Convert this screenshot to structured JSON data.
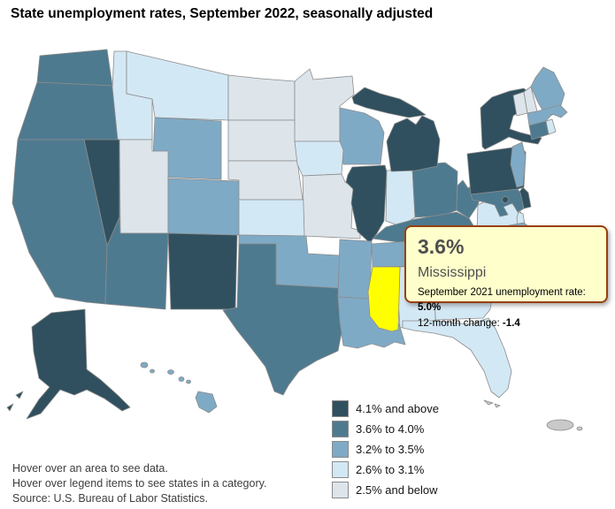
{
  "title": "State unemployment rates, September 2022, seasonally adjusted",
  "tooltip": {
    "rate": "3.6%",
    "state": "Mississippi",
    "prev_label": "September 2021 unemployment rate: ",
    "prev_value": "5.0%",
    "change_label": "12-month change: ",
    "change_value": "-1.4"
  },
  "legend": {
    "items": [
      {
        "label": "4.1% and above",
        "color": "#30505f"
      },
      {
        "label": "3.6% to 4.0%",
        "color": "#4e7a8f"
      },
      {
        "label": "3.2% to 3.5%",
        "color": "#7faac6"
      },
      {
        "label": "2.6% to 3.1%",
        "color": "#d3e8f5"
      },
      {
        "label": "2.5% and below",
        "color": "#dde5eb"
      }
    ]
  },
  "footer": {
    "line1": "Hover over an area to see data.",
    "line2": "Hover over legend items to see states in a category.",
    "line3": "Source: U.S. Bureau of Labor Statistics."
  },
  "map": {
    "highlight_state": "Mississippi",
    "highlight_state_code": "MS",
    "highlight_color": "#ffff00",
    "border_color": "#8c8c8c",
    "no_data_color": "#c9c9c9",
    "background": "#ffffff"
  },
  "chart_data": {
    "type": "heatmap",
    "subtype": "us-state-choropleth",
    "title": "State unemployment rates, September 2022, seasonally adjusted",
    "unit": "percent unemployment",
    "legend_position": "bottom-right",
    "categories": [
      "4.1% and above",
      "3.6% to 4.0%",
      "3.2% to 3.5%",
      "2.6% to 3.1%",
      "2.5% and below"
    ],
    "highlighted": {
      "state": "Mississippi",
      "rate": "3.6%",
      "september_2021_rate": "5.0%",
      "twelve_month_change": "-1.4"
    },
    "state_categories": {
      "WA": "3.6% to 4.0%",
      "OR": "3.6% to 4.0%",
      "CA": "3.6% to 4.0%",
      "AZ": "3.6% to 4.0%",
      "TX": "3.6% to 4.0%",
      "OH": "3.6% to 4.0%",
      "KY": "3.6% to 4.0%",
      "WV": "3.6% to 4.0%",
      "MD": "3.6% to 4.0%",
      "CT": "3.6% to 4.0%",
      "MS": "3.6% to 4.0%",
      "NV": "4.1% and above",
      "NM": "4.1% and above",
      "AK": "4.1% and above",
      "IL": "4.1% and above",
      "MI": "4.1% and above",
      "NY": "4.1% and above",
      "PA": "4.1% and above",
      "DE": "4.1% and above",
      "DC": "4.1% and above",
      "WY": "3.2% to 3.5%",
      "CO": "3.2% to 3.5%",
      "OK": "3.2% to 3.5%",
      "AR": "3.2% to 3.5%",
      "LA": "3.2% to 3.5%",
      "WI": "3.2% to 3.5%",
      "ME": "3.2% to 3.5%",
      "MA": "3.2% to 3.5%",
      "NJ": "3.2% to 3.5%",
      "HI": "3.2% to 3.5%",
      "TN": "3.2% to 3.5%",
      "NC": "3.2% to 3.5%",
      "SC": "3.2% to 3.5%",
      "ID": "2.6% to 3.1%",
      "MT": "2.6% to 3.1%",
      "KS": "2.6% to 3.1%",
      "IA": "2.6% to 3.1%",
      "IN": "2.6% to 3.1%",
      "VA": "2.6% to 3.1%",
      "FL": "2.6% to 3.1%",
      "RI": "2.6% to 3.1%",
      "AL": "2.6% to 3.1%",
      "GA": "2.6% to 3.1%",
      "UT": "2.5% and below",
      "ND": "2.5% and below",
      "SD": "2.5% and below",
      "NE": "2.5% and below",
      "MN": "2.5% and below",
      "MO": "2.5% and below",
      "VT": "2.5% and below",
      "NH": "2.5% and below",
      "PR": "no data"
    }
  }
}
